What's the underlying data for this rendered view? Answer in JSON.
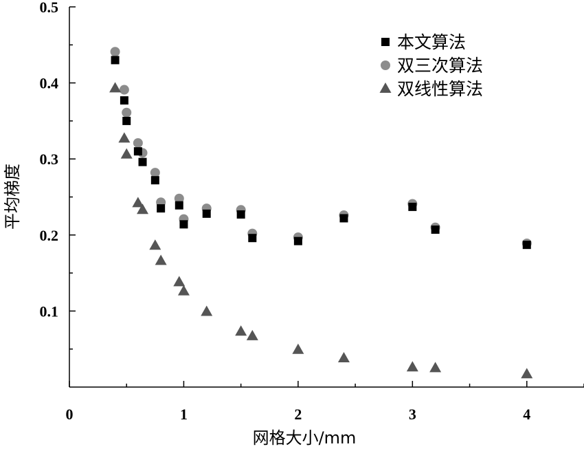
{
  "chart_data": {
    "type": "scatter",
    "title": "",
    "xlabel": "网格大小/mm",
    "ylabel": "平均梯度",
    "xlim": [
      0,
      4.5
    ],
    "ylim": [
      0,
      0.5
    ],
    "xticks": [
      0,
      1,
      2,
      3,
      4
    ],
    "yticks": [
      0.1,
      0.2,
      0.3,
      0.4,
      0.5
    ],
    "xtick_labels": [
      "0",
      "1",
      "2",
      "3",
      "4"
    ],
    "ytick_labels": [
      "0.1",
      "0.2",
      "0.3",
      "0.4",
      "0.5"
    ],
    "grid": false,
    "legend_position": "top-right",
    "series": [
      {
        "name": "本文算法",
        "marker": "square",
        "color": "#000000",
        "x": [
          0.4,
          0.48,
          0.5,
          0.6,
          0.64,
          0.75,
          0.8,
          0.96,
          1.0,
          1.2,
          1.5,
          1.6,
          2.0,
          2.4,
          3.0,
          3.2,
          4.0
        ],
        "y": [
          0.43,
          0.377,
          0.35,
          0.31,
          0.296,
          0.272,
          0.235,
          0.239,
          0.214,
          0.228,
          0.227,
          0.196,
          0.192,
          0.222,
          0.237,
          0.207,
          0.187
        ]
      },
      {
        "name": "双三次算法",
        "marker": "circle",
        "color": "#8c8c8c",
        "x": [
          0.4,
          0.48,
          0.5,
          0.6,
          0.64,
          0.75,
          0.8,
          0.96,
          1.0,
          1.2,
          1.5,
          1.6,
          2.0,
          2.4,
          3.0,
          3.2,
          4.0
        ],
        "y": [
          0.441,
          0.391,
          0.361,
          0.321,
          0.308,
          0.282,
          0.243,
          0.248,
          0.221,
          0.235,
          0.233,
          0.202,
          0.197,
          0.226,
          0.241,
          0.21,
          0.189
        ]
      },
      {
        "name": "双线性算法",
        "marker": "triangle",
        "color": "#555555",
        "x": [
          0.4,
          0.48,
          0.5,
          0.6,
          0.64,
          0.75,
          0.8,
          0.96,
          1.0,
          1.2,
          1.5,
          1.6,
          2.0,
          2.4,
          3.0,
          3.2,
          4.0
        ],
        "y": [
          0.393,
          0.327,
          0.306,
          0.242,
          0.233,
          0.186,
          0.166,
          0.138,
          0.126,
          0.099,
          0.073,
          0.067,
          0.049,
          0.038,
          0.026,
          0.025,
          0.017
        ]
      }
    ]
  }
}
